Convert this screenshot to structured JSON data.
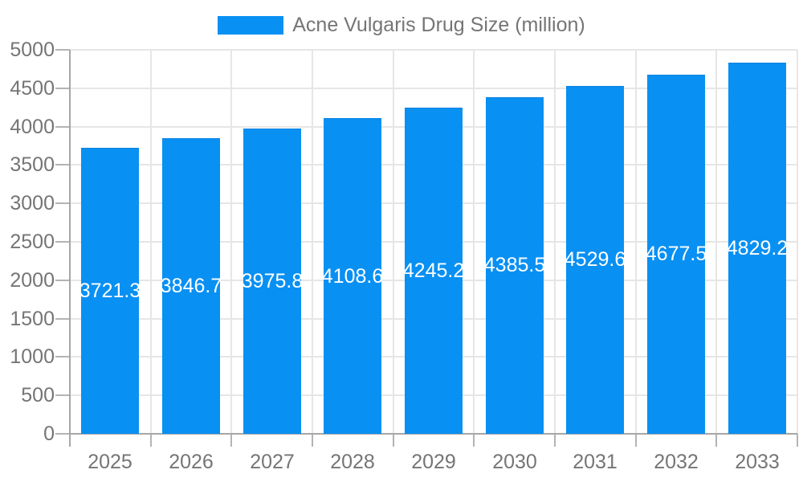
{
  "chart_data": {
    "type": "bar",
    "title": "Acne Vulgaris Drug Size (million)",
    "legend": {
      "label": "Acne Vulgaris Drug Size (million)",
      "position": "top",
      "marker": "rect-swatch"
    },
    "categories": [
      "2025",
      "2026",
      "2027",
      "2028",
      "2029",
      "2030",
      "2031",
      "2032",
      "2033"
    ],
    "series": [
      {
        "name": "Acne Vulgaris Drug Size (million)",
        "values": [
          3721.3,
          3846.7,
          3975.8,
          4108.6,
          4245.2,
          4385.5,
          4529.6,
          4677.5,
          4829.2
        ]
      }
    ],
    "value_labels": [
      "3721.3",
      "3846.7",
      "3975.8",
      "4108.6",
      "4245.2",
      "4385.5",
      "4529.6",
      "4677.5",
      "4829.2"
    ],
    "value_label_position": "inside-center",
    "xlabel": "",
    "ylabel": "",
    "ylim": [
      0,
      5000
    ],
    "yticks": [
      0,
      500,
      1000,
      1500,
      2000,
      2500,
      3000,
      3500,
      4000,
      4500,
      5000
    ],
    "grid": true,
    "colors": {
      "bar": "#0990f3",
      "bar_edge": "#0b82dd",
      "grid_line": "#e6e6e6",
      "axis_line": "#a6a6a6",
      "tick_line": "#b4b4b4",
      "axis_text": "#757575",
      "value_text": "#ffffff",
      "background": "#ffffff"
    }
  }
}
